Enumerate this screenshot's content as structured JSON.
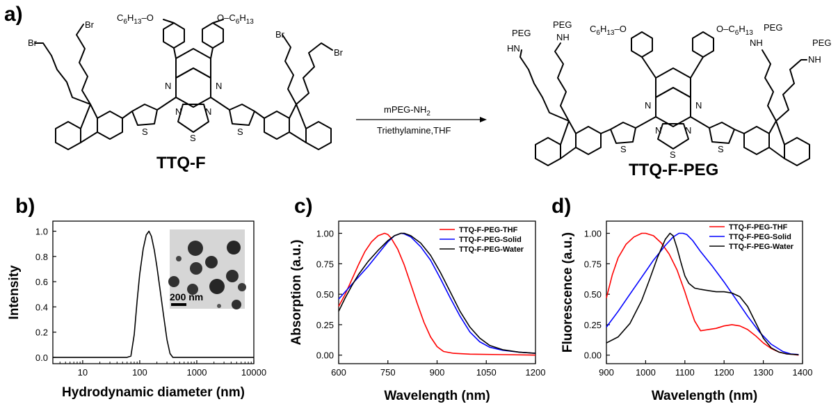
{
  "panel_labels": [
    "a)",
    "b)",
    "c)",
    "d)"
  ],
  "scheme": {
    "reactant_name": "TTQ-F",
    "product_name": "TTQ-F-PEG",
    "reagent_top": "mPEG-NH",
    "reagent_top_sub": "2",
    "reagent_bottom": "Triethylamine,THF",
    "hexyl_main": "C",
    "hexyl_sub1": "6",
    "hexyl_mid": "H",
    "hexyl_sub2": "13",
    "oxygen": "O",
    "bromine": "Br",
    "peg": "PEG",
    "nh": "NH",
    "hn": "HN",
    "n": "N",
    "s": "S"
  },
  "inset": {
    "scale_label": "200 nm"
  },
  "chart_data": [
    {
      "id": "b",
      "type": "line",
      "xlabel": "Hydrodynamic diameter (nm)",
      "ylabel": "Intensity",
      "xscale": "log",
      "xlim": [
        3,
        10000
      ],
      "ylim": [
        -0.05,
        1.08
      ],
      "xticks": [
        10,
        100,
        1000,
        10000
      ],
      "xtick_labels": [
        "10",
        "100",
        "1000",
        "10000"
      ],
      "yticks": [
        0.0,
        0.2,
        0.4,
        0.6,
        0.8,
        1.0
      ],
      "ytick_labels": [
        "0.0",
        "0.2",
        "0.4",
        "0.6",
        "0.8",
        "1.0"
      ],
      "legend": "none",
      "grid": false,
      "series": [
        {
          "color": "#000000",
          "x": [
            3,
            60,
            70,
            80,
            90,
            100,
            115,
            130,
            145,
            160,
            180,
            200,
            230,
            260,
            300,
            340,
            380,
            450,
            1000,
            10000
          ],
          "y": [
            0,
            0,
            0.01,
            0.18,
            0.45,
            0.66,
            0.86,
            0.97,
            1.0,
            0.96,
            0.85,
            0.72,
            0.52,
            0.34,
            0.14,
            0.03,
            0.0,
            0,
            0,
            0
          ]
        }
      ]
    },
    {
      "id": "c",
      "type": "line",
      "xlabel": "Wavelength (nm)",
      "ylabel": "Absorption (a.u.)",
      "xlim": [
        600,
        1200
      ],
      "ylim": [
        -0.07,
        1.1
      ],
      "xticks": [
        600,
        750,
        900,
        1050,
        1200
      ],
      "xtick_labels": [
        "600",
        "750",
        "900",
        "1050",
        "1200"
      ],
      "yticks": [
        0.0,
        0.25,
        0.5,
        0.75,
        1.0
      ],
      "ytick_labels": [
        "0.00",
        "0.25",
        "0.50",
        "0.75",
        "1.00"
      ],
      "legend": "top-right",
      "grid": false,
      "series": [
        {
          "name": "TTQ-F-PEG-THF",
          "color": "#ff0000",
          "x": [
            600,
            620,
            640,
            660,
            680,
            700,
            720,
            740,
            750,
            760,
            780,
            800,
            820,
            840,
            860,
            880,
            900,
            920,
            950,
            1000,
            1100,
            1200
          ],
          "y": [
            0.4,
            0.5,
            0.62,
            0.74,
            0.85,
            0.93,
            0.98,
            1.0,
            0.99,
            0.96,
            0.87,
            0.74,
            0.58,
            0.42,
            0.27,
            0.15,
            0.07,
            0.03,
            0.015,
            0.008,
            0.004,
            0.0
          ]
        },
        {
          "name": "TTQ-F-PEG-Solid",
          "color": "#0000ff",
          "x": [
            600,
            630,
            660,
            690,
            720,
            750,
            770,
            790,
            800,
            820,
            850,
            880,
            910,
            940,
            970,
            1000,
            1030,
            1060,
            1100,
            1150,
            1200
          ],
          "y": [
            0.46,
            0.55,
            0.64,
            0.73,
            0.83,
            0.93,
            0.98,
            1.0,
            0.995,
            0.97,
            0.89,
            0.78,
            0.63,
            0.47,
            0.32,
            0.19,
            0.11,
            0.065,
            0.04,
            0.025,
            0.015
          ]
        },
        {
          "name": "TTQ-F-PEG-Water",
          "color": "#000000",
          "x": [
            600,
            620,
            640,
            660,
            690,
            720,
            750,
            770,
            790,
            800,
            820,
            850,
            880,
            910,
            940,
            970,
            1000,
            1030,
            1060,
            1100,
            1150,
            1200
          ],
          "y": [
            0.36,
            0.47,
            0.57,
            0.66,
            0.77,
            0.86,
            0.94,
            0.98,
            1.0,
            1.0,
            0.98,
            0.92,
            0.82,
            0.68,
            0.52,
            0.36,
            0.23,
            0.14,
            0.08,
            0.045,
            0.025,
            0.015
          ]
        }
      ]
    },
    {
      "id": "d",
      "type": "line",
      "xlabel": "Wavelength (nm)",
      "ylabel": "Fluorescence (a.u.)",
      "xlim": [
        900,
        1400
      ],
      "ylim": [
        -0.07,
        1.1
      ],
      "xticks": [
        900,
        1000,
        1100,
        1200,
        1300,
        1400
      ],
      "xtick_labels": [
        "900",
        "1000",
        "1100",
        "1200",
        "1300",
        "1400"
      ],
      "yticks": [
        0.0,
        0.25,
        0.5,
        0.75,
        1.0
      ],
      "ytick_labels": [
        "0.00",
        "0.25",
        "0.50",
        "0.75",
        "1.00"
      ],
      "legend": "top-right",
      "grid": false,
      "series": [
        {
          "name": "TTQ-F-PEG-THF",
          "color": "#ff0000",
          "x": [
            900,
            915,
            930,
            950,
            970,
            990,
            1000,
            1020,
            1040,
            1060,
            1080,
            1100,
            1110,
            1125,
            1140,
            1160,
            1180,
            1200,
            1220,
            1240,
            1260,
            1280,
            1300,
            1320,
            1340,
            1360,
            1380,
            1390
          ],
          "y": [
            0.47,
            0.66,
            0.8,
            0.91,
            0.97,
            1.0,
            1.0,
            0.98,
            0.92,
            0.83,
            0.7,
            0.52,
            0.42,
            0.28,
            0.2,
            0.21,
            0.22,
            0.24,
            0.25,
            0.24,
            0.21,
            0.16,
            0.1,
            0.055,
            0.025,
            0.01,
            0.004,
            0.0
          ]
        },
        {
          "name": "TTQ-F-PEG-Solid",
          "color": "#0000ff",
          "x": [
            900,
            930,
            960,
            990,
            1020,
            1050,
            1070,
            1085,
            1095,
            1105,
            1120,
            1140,
            1170,
            1200,
            1230,
            1260,
            1290,
            1320,
            1350,
            1370,
            1390
          ],
          "y": [
            0.23,
            0.36,
            0.5,
            0.64,
            0.78,
            0.9,
            0.97,
            1.0,
            1.0,
            0.99,
            0.94,
            0.85,
            0.73,
            0.6,
            0.46,
            0.32,
            0.19,
            0.09,
            0.03,
            0.01,
            0.005
          ]
        },
        {
          "name": "TTQ-F-PEG-Water",
          "color": "#000000",
          "x": [
            900,
            930,
            960,
            990,
            1010,
            1030,
            1050,
            1062,
            1070,
            1080,
            1090,
            1100,
            1110,
            1125,
            1140,
            1160,
            1180,
            1200,
            1220,
            1240,
            1260,
            1280,
            1300,
            1320,
            1340,
            1360,
            1390
          ],
          "y": [
            0.1,
            0.15,
            0.26,
            0.45,
            0.62,
            0.8,
            0.95,
            1.0,
            0.98,
            0.88,
            0.76,
            0.65,
            0.59,
            0.55,
            0.54,
            0.53,
            0.52,
            0.52,
            0.51,
            0.48,
            0.4,
            0.27,
            0.14,
            0.06,
            0.025,
            0.01,
            0.003
          ]
        }
      ]
    }
  ]
}
